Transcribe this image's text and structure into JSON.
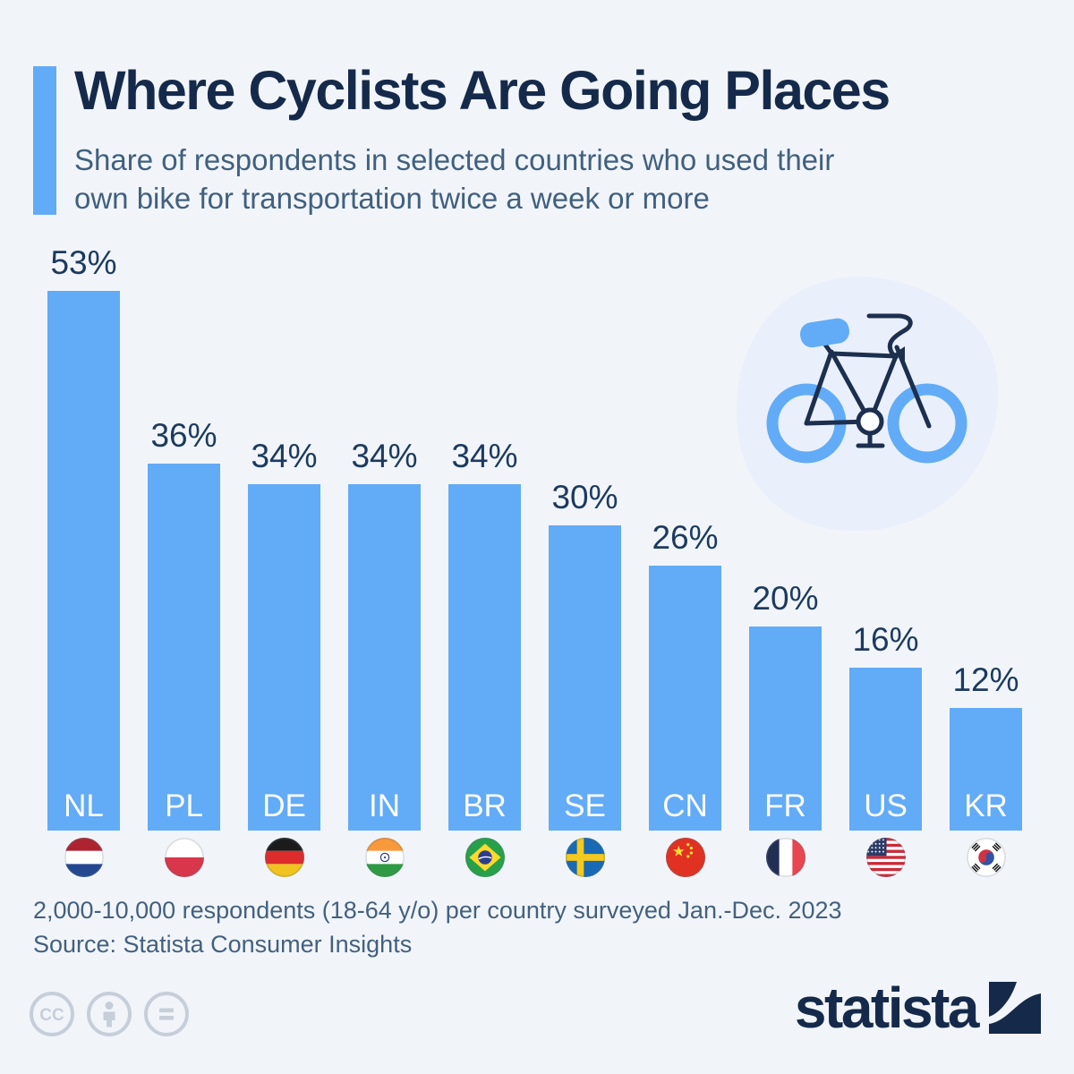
{
  "header": {
    "title": "Where Cyclists Are Going Places",
    "subtitle_lines": [
      "Share of respondents in selected countries who used their",
      "own bike for transportation twice a week or more"
    ],
    "accent_color": "#62abf7"
  },
  "chart_data": {
    "type": "bar",
    "title": "Share of respondents who used their own bike for transportation twice a week or more",
    "categories": [
      "NL",
      "PL",
      "DE",
      "IN",
      "BR",
      "SE",
      "CN",
      "FR",
      "US",
      "KR"
    ],
    "values": [
      53,
      36,
      34,
      34,
      34,
      30,
      26,
      20,
      16,
      12
    ],
    "value_suffix": "%",
    "value_labels": [
      "53%",
      "36%",
      "34%",
      "34%",
      "34%",
      "30%",
      "26%",
      "20%",
      "16%",
      "12%"
    ],
    "countries": [
      "Netherlands",
      "Poland",
      "Germany",
      "India",
      "Brazil",
      "Sweden",
      "China",
      "France",
      "United States",
      "South Korea"
    ],
    "flag_icons": [
      "nl-flag-icon",
      "pl-flag-icon",
      "de-flag-icon",
      "in-flag-icon",
      "br-flag-icon",
      "se-flag-icon",
      "cn-flag-icon",
      "fr-flag-icon",
      "us-flag-icon",
      "kr-flag-icon"
    ],
    "bar_color": "#62abf7",
    "label_color": "#1c3a5e",
    "bar_label_color": "#ffffff",
    "ylim": [
      0,
      53
    ],
    "grid": false,
    "legend": "none"
  },
  "illustration": {
    "icon": "bicycle-icon",
    "wheel_color": "#62abf7",
    "frame_color": "#1d2f4e",
    "blob_color": "#e9f0fb"
  },
  "footer": {
    "note": "2,000-10,000 respondents (18-64 y/o) per country surveyed Jan.-Dec. 2023",
    "source": "Source: Statista Consumer Insights"
  },
  "branding": {
    "logo_text": "statista",
    "logo_color": "#152a4a",
    "license_icons": [
      "cc-icon",
      "cc-by-icon",
      "cc-nd-icon"
    ],
    "license_icon_color": "#c5ced9"
  }
}
